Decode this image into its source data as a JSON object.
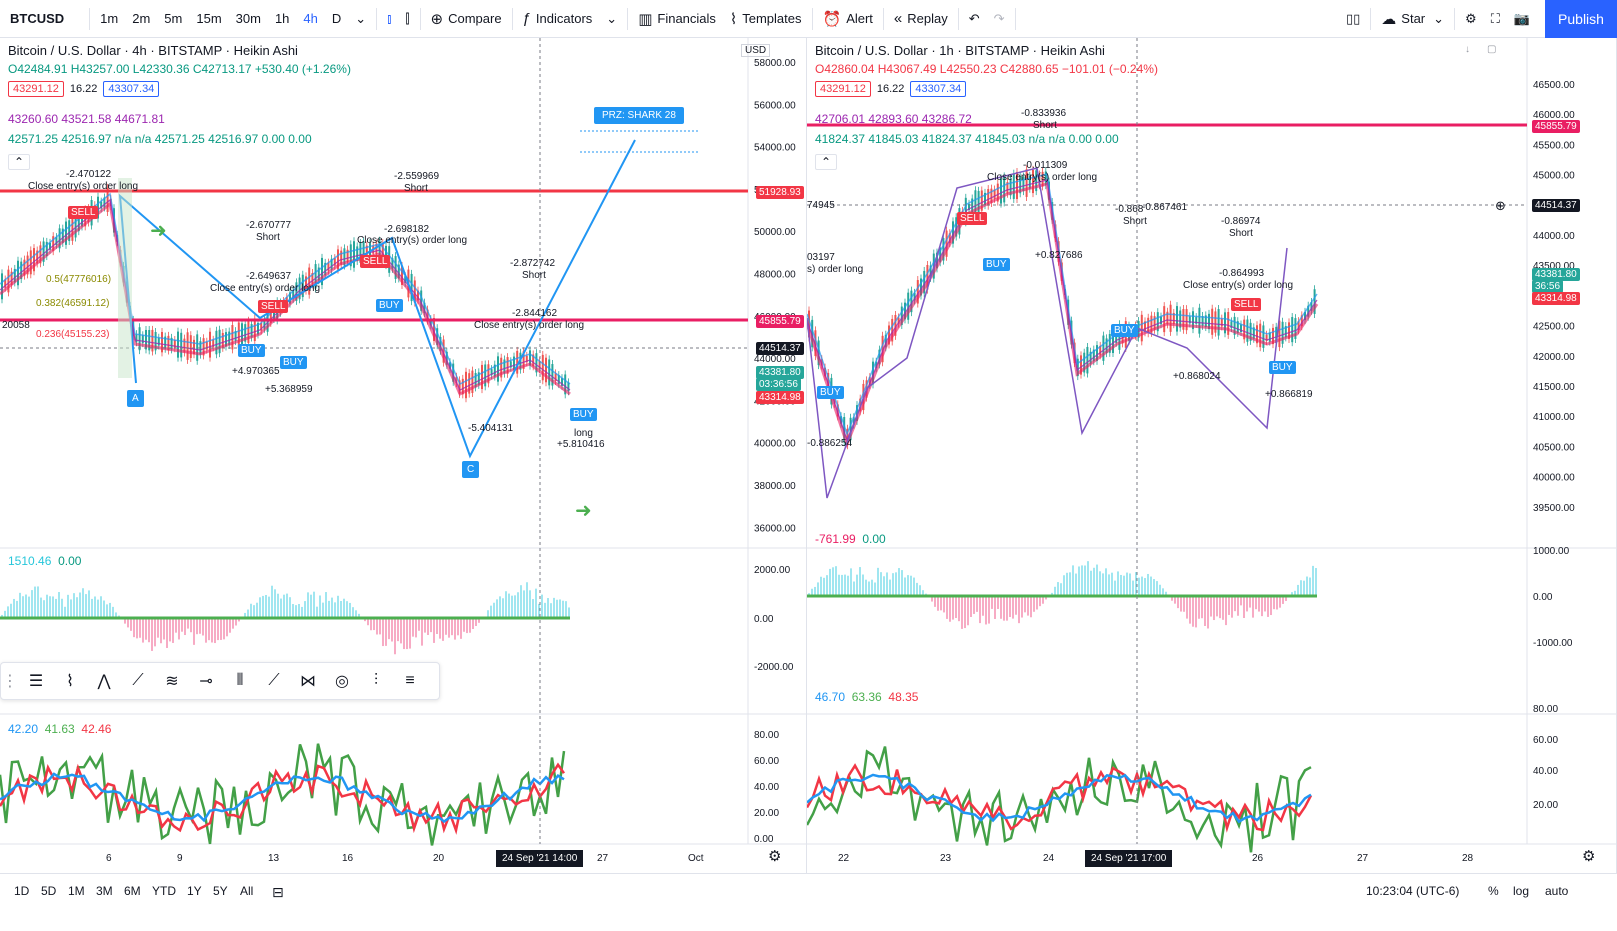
{
  "toolbar": {
    "symbol": "BTCUSD",
    "intervals": [
      "1m",
      "2m",
      "5m",
      "15m",
      "30m",
      "1h",
      "4h",
      "D"
    ],
    "active_interval": "4h",
    "compare": "Compare",
    "indicators": "Indicators",
    "financials": "Financials",
    "templates": "Templates",
    "alert": "Alert",
    "replay": "Replay",
    "star": "Star",
    "publish": "Publish"
  },
  "left_chart": {
    "title": "Bitcoin / U.S. Dollar · 4h · BITSTAMP · Heikin Ashi",
    "ohlc": "O42484.91 H43257.00 L42330.36 C42713.17 +530.40 (+1.26%)",
    "box1": "43291.12",
    "box_mid": "16.22",
    "box2": "43307.34",
    "ind1": "43260.60  43521.58  44671.81",
    "ind2": "42571.25  42516.97  n/a  n/a  42571.25  42516.97  0.00  0.00",
    "currency": "USD",
    "price_ticks": [
      "58000.00",
      "56000.00",
      "54000.00",
      "52000.00",
      "50000.00",
      "48000.00",
      "46000.00",
      "44000.00",
      "42000.00",
      "40000.00",
      "38000.00",
      "36000.00"
    ],
    "tag_red": "51928.93",
    "tag_pink": "45855.79",
    "tag_crosshair": "44514.37",
    "tag_last": "43381.80",
    "tag_timer": "03:36:56",
    "tag_ma": "43314.98",
    "prz": "PRZ: SHARK 28",
    "labels": [
      "-2.559969",
      "Short",
      "-2.670777",
      "Short",
      "-2.649637",
      "Close entry(s) order long",
      "-2.698182",
      "Close entry(s) order long",
      "-2.872742",
      "Short",
      "-2.844162",
      "Close entry(s) order long",
      "+4.970365",
      "+5.368959",
      "-5.404131",
      "long",
      "+5.810416",
      "Close entry(s) order long",
      "-2.470122",
      "0.5(47776016)",
      "0.382(46591.12)",
      "0.236(45155.23)",
      "20058"
    ],
    "points": [
      "A",
      "C"
    ],
    "macd_legend": [
      "1510.46",
      "0.00"
    ],
    "macd_ticks": [
      "2000.00",
      "0.00",
      "-2000.00"
    ],
    "rsi_legend": [
      "42.20",
      "41.63",
      "42.46"
    ],
    "rsi_ticks": [
      "80.00",
      "60.00",
      "40.00",
      "20.00",
      "0.00"
    ],
    "x_ticks": [
      "6",
      "9",
      "13",
      "16",
      "20",
      "27",
      "Oct"
    ],
    "x_cursor": "24 Sep '21   14:00"
  },
  "right_chart": {
    "title": "Bitcoin / U.S. Dollar · 1h · BITSTAMP · Heikin Ashi",
    "ohlc": "O42860.04 H43067.49 L42550.23 C42880.65 −101.01 (−0.24%)",
    "box1": "43291.12",
    "box_mid": "16.22",
    "box2": "43307.34",
    "ind1": "42706.01  42893.60  43286.72",
    "ind2": "41824.37  41845.03  41824.37  41845.03  n/a  n/a  0.00  0.00",
    "currency": "USD",
    "price_ticks": [
      "46500.00",
      "46000.00",
      "45500.00",
      "45000.00",
      "44500.00",
      "44000.00",
      "43500.00",
      "43000.00",
      "42500.00",
      "42000.00",
      "41500.00",
      "41000.00",
      "40500.00",
      "40000.00",
      "39500.00"
    ],
    "tag_pink": "45855.79",
    "tag_crosshair": "44514.37",
    "tag_last": "43381.80",
    "tag_timer": "36:56",
    "tag_ma": "43314.98",
    "labels": [
      "-0.833936",
      "Short",
      "-0.011309",
      "Close entry(s) order long",
      "-0.868",
      "-0.867461",
      "Short",
      "-0.86974",
      "Short",
      "+0.827686",
      "-0.864993",
      "Close entry(s) order long",
      "+0.866819",
      "+0.868024",
      "-0.886254",
      "74945",
      "03197",
      "s) order long"
    ],
    "macd_legend": [
      "-761.99",
      "0.00"
    ],
    "macd_ticks": [
      "1000.00",
      "0.00",
      "-1000.00"
    ],
    "rsi_legend": [
      "46.70",
      "63.36",
      "48.35"
    ],
    "rsi_ticks": [
      "80.00",
      "60.00",
      "40.00",
      "20.00"
    ],
    "x_ticks": [
      "22",
      "23",
      "24",
      "26",
      "27",
      "28"
    ],
    "x_cursor": "24 Sep '21   17:00"
  },
  "bottom": {
    "ranges": [
      "1D",
      "5D",
      "1M",
      "3M",
      "6M",
      "YTD",
      "1Y",
      "5Y",
      "All"
    ],
    "time": "10:23:04 (UTC-6)",
    "pct": "%",
    "log": "log",
    "auto": "auto"
  }
}
